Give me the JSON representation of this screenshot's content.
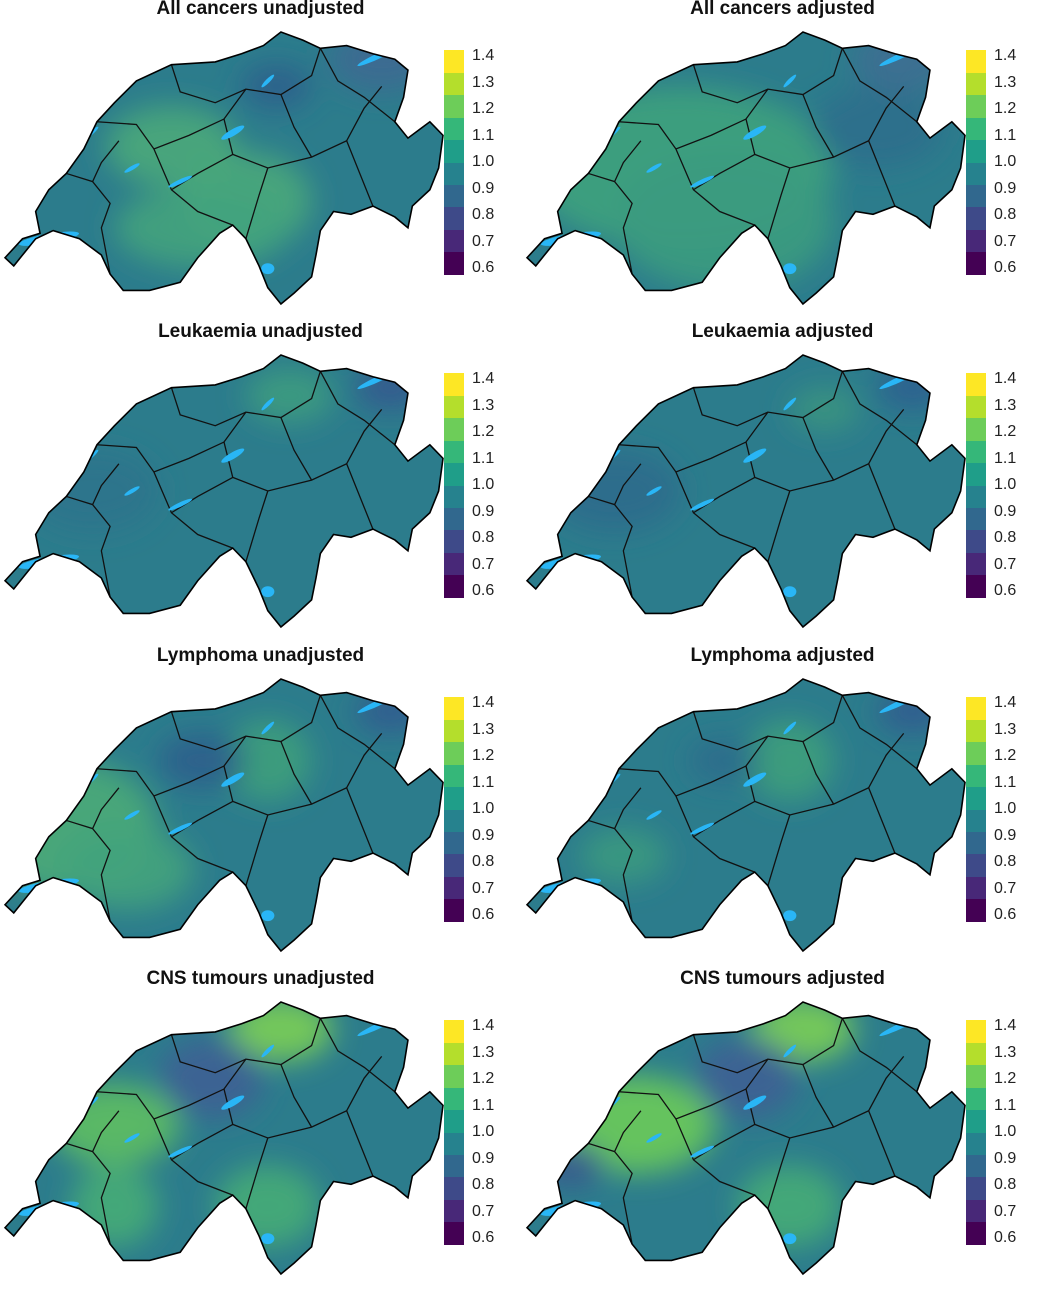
{
  "figure": {
    "type": "choropleth-maps",
    "colorscale": {
      "name": "viridis",
      "ticks": [
        "1.4",
        "1.3",
        "1.2",
        "1.1",
        "1.0",
        "0.9",
        "0.8",
        "0.7",
        "0.6"
      ],
      "range": [
        0.6,
        1.4
      ],
      "colors": [
        "#440154",
        "#482878",
        "#3e4a89",
        "#31688e",
        "#26828e",
        "#1f9e89",
        "#35b779",
        "#6dcd59",
        "#b4de2c",
        "#fde725"
      ]
    },
    "base_fill": "#2c7c8c",
    "lake_color": "#29b6f6",
    "panels": [
      {
        "title": "All cancers unadjusted",
        "hotspots": [
          [
            "#4aa97a",
            0.55,
            0.62,
            0.15,
            0.18
          ],
          [
            "#43a37d",
            0.45,
            0.72,
            0.2,
            0.15
          ],
          [
            "#2d5e8c",
            0.62,
            0.2,
            0.08,
            0.08
          ],
          [
            "#3e6a92",
            0.86,
            0.1,
            0.12,
            0.12
          ],
          [
            "#4aa97a",
            0.38,
            0.42,
            0.15,
            0.15
          ]
        ]
      },
      {
        "title": "All cancers adjusted",
        "hotspots": [
          [
            "#3fa27d",
            0.35,
            0.5,
            0.35,
            0.3
          ],
          [
            "#3b9b80",
            0.45,
            0.7,
            0.25,
            0.25
          ],
          [
            "#2f6f8c",
            0.8,
            0.35,
            0.15,
            0.15
          ],
          [
            "#3f6e92",
            0.86,
            0.1,
            0.12,
            0.12
          ]
        ]
      },
      {
        "title": "Leukaemia unadjusted",
        "hotspots": [
          [
            "#3f9c80",
            0.65,
            0.15,
            0.1,
            0.1
          ],
          [
            "#2f738c",
            0.2,
            0.5,
            0.15,
            0.15
          ],
          [
            "#34578f",
            0.88,
            0.12,
            0.08,
            0.08
          ]
        ]
      },
      {
        "title": "Leukaemia adjusted",
        "hotspots": [
          [
            "#3b9580",
            0.68,
            0.2,
            0.08,
            0.08
          ],
          [
            "#2f6b8c",
            0.2,
            0.5,
            0.15,
            0.15
          ],
          [
            "#2f5e90",
            0.88,
            0.12,
            0.08,
            0.08
          ]
        ]
      },
      {
        "title": "Lymphoma unadjusted",
        "hotspots": [
          [
            "#4aab78",
            0.15,
            0.55,
            0.2,
            0.25
          ],
          [
            "#43a37d",
            0.28,
            0.7,
            0.15,
            0.15
          ],
          [
            "#3ea07c",
            0.6,
            0.3,
            0.1,
            0.15
          ],
          [
            "#2d5e8c",
            0.45,
            0.3,
            0.1,
            0.1
          ],
          [
            "#325b90",
            0.88,
            0.12,
            0.08,
            0.08
          ]
        ]
      },
      {
        "title": "Lymphoma adjusted",
        "hotspots": [
          [
            "#3ea07c",
            0.6,
            0.3,
            0.1,
            0.15
          ],
          [
            "#2f6b8c",
            0.45,
            0.3,
            0.08,
            0.08
          ],
          [
            "#325b90",
            0.88,
            0.12,
            0.08,
            0.08
          ],
          [
            "#3a9a80",
            0.22,
            0.65,
            0.1,
            0.1
          ]
        ]
      },
      {
        "title": "CNS tumours unadjusted",
        "hotspots": [
          [
            "#7ccf55",
            0.63,
            0.1,
            0.12,
            0.12
          ],
          [
            "#5ebf63",
            0.25,
            0.45,
            0.15,
            0.15
          ],
          [
            "#3f5f93",
            0.47,
            0.28,
            0.12,
            0.15
          ],
          [
            "#46ac77",
            0.6,
            0.75,
            0.12,
            0.15
          ],
          [
            "#46ac77",
            0.25,
            0.75,
            0.1,
            0.15
          ]
        ]
      },
      {
        "title": "CNS tumours adjusted",
        "hotspots": [
          [
            "#7ccf55",
            0.63,
            0.1,
            0.12,
            0.12
          ],
          [
            "#6ccb5a",
            0.25,
            0.45,
            0.18,
            0.18
          ],
          [
            "#3f5f93",
            0.5,
            0.28,
            0.12,
            0.15
          ],
          [
            "#46ac77",
            0.6,
            0.75,
            0.12,
            0.15
          ],
          [
            "#3a5a8e",
            0.1,
            0.6,
            0.08,
            0.08
          ]
        ]
      }
    ]
  }
}
